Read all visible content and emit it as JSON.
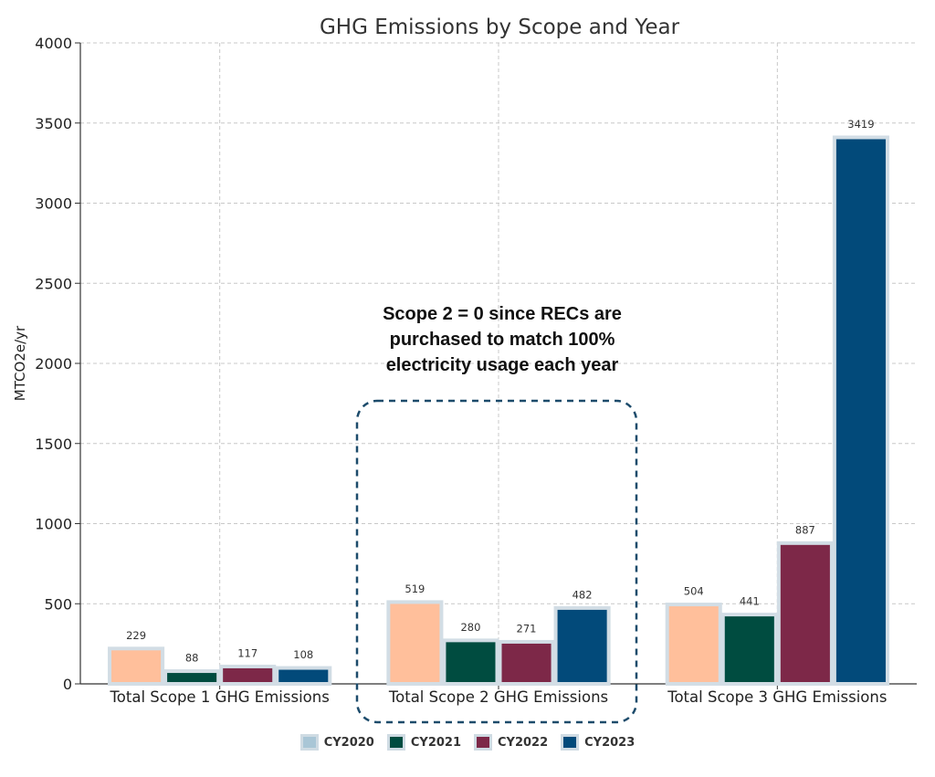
{
  "chart_data": {
    "type": "bar",
    "title": "GHG Emissions by Scope and Year",
    "xlabel": "",
    "ylabel": "MTCO2e/yr",
    "ylim": [
      0,
      4000
    ],
    "yticks": [
      0,
      500,
      1000,
      1500,
      2000,
      2500,
      3000,
      3500,
      4000
    ],
    "grid": true,
    "legend_position": "bottom",
    "categories": [
      "Total Scope 1 GHG Emissions",
      "Total Scope 2 GHG Emissions",
      "Total Scope 3 GHG Emissions"
    ],
    "series": [
      {
        "name": "CY2020",
        "color": "#ffbf9b",
        "legend_color": "#a9c6d6",
        "values": [
          229,
          519,
          504
        ]
      },
      {
        "name": "CY2021",
        "color": "#004c40",
        "legend_color": "#004c40",
        "values": [
          88,
          280,
          441
        ]
      },
      {
        "name": "CY2022",
        "color": "#7d2848",
        "legend_color": "#7d2848",
        "values": [
          117,
          271,
          887
        ]
      },
      {
        "name": "CY2023",
        "color": "#024a7a",
        "legend_color": "#024a7a",
        "values": [
          108,
          482,
          3419
        ]
      }
    ],
    "annotation": {
      "lines": [
        "Scope 2 = 0 since RECs are",
        "purchased to match 100%",
        "electricity usage each year"
      ],
      "highlight_category": "Total Scope 2 GHG Emissions",
      "highlight_style": "dashed rounded box"
    }
  }
}
